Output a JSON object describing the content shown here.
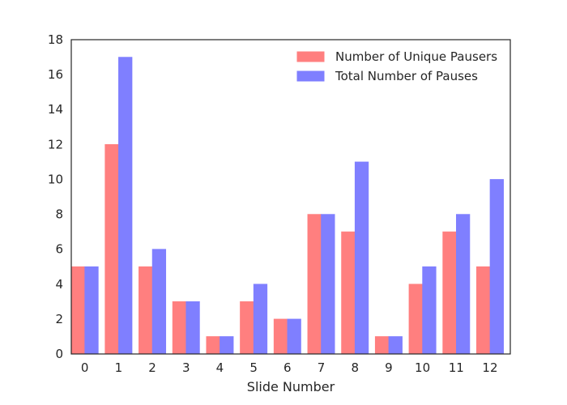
{
  "chart_data": {
    "type": "bar",
    "title": "",
    "xlabel": "Slide Number",
    "ylabel": "",
    "categories": [
      "0",
      "1",
      "2",
      "3",
      "4",
      "5",
      "6",
      "7",
      "8",
      "9",
      "10",
      "11",
      "12"
    ],
    "ylim": [
      0,
      18
    ],
    "yticks": [
      0,
      2,
      4,
      6,
      8,
      10,
      12,
      14,
      16,
      18
    ],
    "grid": false,
    "legend_position": "top-right",
    "series": [
      {
        "name": "Number of Unique Pausers",
        "color": "#ff7f7f",
        "values": [
          5,
          12,
          5,
          3,
          1,
          3,
          2,
          8,
          7,
          1,
          4,
          7,
          5
        ]
      },
      {
        "name": "Total Number of  Pauses",
        "color": "#7f7fff",
        "values": [
          5,
          17,
          6,
          3,
          1,
          4,
          2,
          8,
          11,
          1,
          5,
          8,
          10
        ]
      }
    ]
  }
}
